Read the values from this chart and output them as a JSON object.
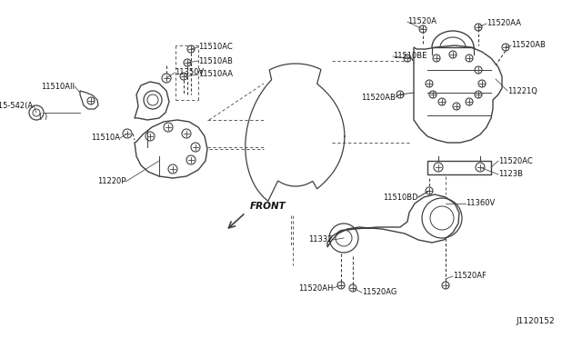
{
  "bg_color": "#ffffff",
  "line_color": "#404040",
  "text_color": "#111111",
  "diagram_id": "J1120152",
  "figsize": [
    6.4,
    3.72
  ],
  "dpi": 100,
  "xlim": [
    0,
    640
  ],
  "ylim": [
    0,
    372
  ]
}
